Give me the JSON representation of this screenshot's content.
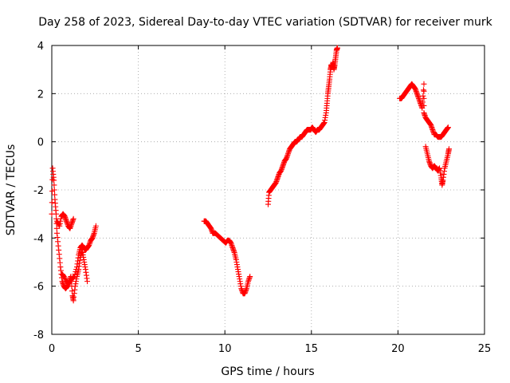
{
  "chart_data": {
    "type": "scatter",
    "title": "Day 258 of 2023, Sidereal Day-to-day VTEC variation (SDTVAR) for receiver murk",
    "xlabel": "GPS time / hours",
    "ylabel": "SDTVAR / TECUs",
    "xlim": [
      0,
      25
    ],
    "ylim": [
      -8,
      4
    ],
    "xticks": [
      0,
      5,
      10,
      15,
      20,
      25
    ],
    "yticks": [
      -8,
      -6,
      -4,
      -2,
      0,
      2,
      4
    ],
    "grid": true,
    "marker": "plus",
    "color": "#ff0000",
    "series": [
      {
        "name": "SDTVAR",
        "segments": [
          [
            [
              0.0,
              -3.0
            ],
            [
              0.05,
              -1.1
            ],
            [
              0.12,
              -1.6
            ],
            [
              0.18,
              -2.4
            ],
            [
              0.25,
              -3.0
            ],
            [
              0.3,
              -3.8
            ],
            [
              0.4,
              -4.5
            ],
            [
              0.5,
              -5.2
            ],
            [
              0.6,
              -5.8
            ],
            [
              0.7,
              -6.0
            ],
            [
              0.8,
              -6.1
            ],
            [
              0.9,
              -6.0
            ],
            [
              1.0,
              -5.8
            ],
            [
              1.1,
              -5.6
            ],
            [
              1.2,
              -6.4
            ],
            [
              1.25,
              -6.6
            ],
            [
              1.35,
              -6.0
            ],
            [
              1.45,
              -5.6
            ],
            [
              1.55,
              -5.3
            ],
            [
              1.65,
              -4.8
            ],
            [
              1.75,
              -4.5
            ],
            [
              1.85,
              -4.9
            ],
            [
              1.95,
              -5.3
            ],
            [
              2.05,
              -5.8
            ]
          ],
          [
            [
              0.3,
              -3.3
            ],
            [
              0.45,
              -3.5
            ],
            [
              0.55,
              -3.1
            ],
            [
              0.65,
              -3.0
            ],
            [
              0.75,
              -3.1
            ],
            [
              0.85,
              -3.3
            ],
            [
              0.95,
              -3.5
            ],
            [
              1.05,
              -3.6
            ],
            [
              1.15,
              -3.4
            ],
            [
              1.25,
              -3.2
            ]
          ],
          [
            [
              0.6,
              -5.5
            ],
            [
              0.7,
              -5.6
            ],
            [
              0.85,
              -5.8
            ],
            [
              1.0,
              -5.9
            ],
            [
              1.15,
              -5.7
            ],
            [
              1.3,
              -5.6
            ],
            [
              1.45,
              -5.2
            ],
            [
              1.55,
              -4.7
            ],
            [
              1.65,
              -4.4
            ],
            [
              1.75,
              -4.3
            ],
            [
              1.85,
              -4.4
            ],
            [
              1.95,
              -4.5
            ],
            [
              2.05,
              -4.4
            ],
            [
              2.15,
              -4.3
            ],
            [
              2.25,
              -4.1
            ],
            [
              2.35,
              -4.0
            ],
            [
              2.45,
              -3.8
            ],
            [
              2.55,
              -3.5
            ]
          ],
          [
            [
              8.8,
              -3.3
            ],
            [
              8.9,
              -3.3
            ],
            [
              9.0,
              -3.4
            ],
            [
              9.1,
              -3.5
            ],
            [
              9.2,
              -3.6
            ],
            [
              9.3,
              -3.8
            ],
            [
              9.45,
              -3.8
            ],
            [
              9.6,
              -3.9
            ],
            [
              9.75,
              -4.0
            ],
            [
              9.9,
              -4.1
            ],
            [
              10.05,
              -4.2
            ],
            [
              10.15,
              -4.1
            ],
            [
              10.25,
              -4.1
            ],
            [
              10.35,
              -4.2
            ],
            [
              10.45,
              -4.4
            ],
            [
              10.55,
              -4.6
            ],
            [
              10.65,
              -4.9
            ],
            [
              10.75,
              -5.3
            ],
            [
              10.85,
              -5.7
            ],
            [
              10.95,
              -6.1
            ],
            [
              11.05,
              -6.3
            ],
            [
              11.15,
              -6.3
            ],
            [
              11.25,
              -6.1
            ],
            [
              11.35,
              -5.8
            ],
            [
              11.45,
              -5.6
            ]
          ],
          [
            [
              12.5,
              -2.6
            ],
            [
              12.55,
              -2.1
            ],
            [
              12.65,
              -2.0
            ],
            [
              12.75,
              -1.9
            ],
            [
              12.85,
              -1.8
            ],
            [
              12.95,
              -1.7
            ],
            [
              13.05,
              -1.5
            ],
            [
              13.15,
              -1.3
            ],
            [
              13.25,
              -1.2
            ],
            [
              13.35,
              -1.0
            ],
            [
              13.45,
              -0.8
            ],
            [
              13.55,
              -0.7
            ],
            [
              13.65,
              -0.5
            ],
            [
              13.75,
              -0.3
            ],
            [
              13.85,
              -0.2
            ],
            [
              13.95,
              -0.1
            ],
            [
              14.05,
              0.0
            ],
            [
              14.15,
              0.0
            ],
            [
              14.25,
              0.1
            ],
            [
              14.35,
              0.2
            ],
            [
              14.45,
              0.2
            ],
            [
              14.55,
              0.3
            ],
            [
              14.65,
              0.4
            ],
            [
              14.75,
              0.5
            ],
            [
              14.85,
              0.5
            ],
            [
              14.95,
              0.5
            ],
            [
              15.05,
              0.6
            ],
            [
              15.15,
              0.5
            ],
            [
              15.25,
              0.4
            ],
            [
              15.35,
              0.5
            ],
            [
              15.45,
              0.5
            ],
            [
              15.55,
              0.6
            ],
            [
              15.65,
              0.7
            ],
            [
              15.75,
              0.8
            ],
            [
              15.85,
              1.2
            ],
            [
              15.9,
              1.6
            ],
            [
              15.95,
              2.0
            ],
            [
              16.0,
              2.3
            ],
            [
              16.05,
              2.6
            ],
            [
              16.1,
              3.0
            ],
            [
              16.15,
              3.2
            ],
            [
              16.2,
              3.1
            ],
            [
              16.25,
              3.3
            ],
            [
              16.3,
              3.0
            ],
            [
              16.35,
              3.2
            ],
            [
              16.4,
              3.5
            ],
            [
              16.45,
              3.8
            ],
            [
              16.5,
              3.9
            ]
          ],
          [
            [
              20.1,
              1.8
            ],
            [
              20.2,
              1.8
            ],
            [
              20.3,
              1.9
            ],
            [
              20.4,
              2.0
            ],
            [
              20.5,
              2.1
            ],
            [
              20.6,
              2.2
            ],
            [
              20.7,
              2.3
            ],
            [
              20.8,
              2.4
            ],
            [
              20.9,
              2.3
            ],
            [
              21.0,
              2.2
            ],
            [
              21.1,
              2.0
            ],
            [
              21.2,
              1.8
            ],
            [
              21.3,
              1.6
            ],
            [
              21.4,
              1.4
            ],
            [
              21.5,
              2.4
            ],
            [
              21.5,
              1.2
            ],
            [
              21.6,
              1.0
            ],
            [
              21.7,
              0.9
            ],
            [
              21.8,
              0.8
            ],
            [
              21.9,
              0.7
            ],
            [
              22.0,
              0.5
            ],
            [
              22.1,
              0.3
            ],
            [
              22.2,
              0.3
            ],
            [
              22.3,
              0.2
            ],
            [
              22.4,
              0.2
            ],
            [
              22.5,
              0.2
            ],
            [
              22.6,
              0.3
            ],
            [
              22.7,
              0.4
            ],
            [
              22.8,
              0.5
            ],
            [
              22.9,
              0.6
            ]
          ],
          [
            [
              21.6,
              -0.2
            ],
            [
              21.7,
              -0.5
            ],
            [
              21.8,
              -0.8
            ],
            [
              21.9,
              -1.0
            ],
            [
              22.0,
              -1.1
            ],
            [
              22.1,
              -1.0
            ],
            [
              22.2,
              -1.1
            ],
            [
              22.3,
              -1.2
            ],
            [
              22.4,
              -1.1
            ],
            [
              22.5,
              -1.5
            ],
            [
              22.55,
              -1.8
            ],
            [
              22.6,
              -1.6
            ],
            [
              22.7,
              -1.1
            ],
            [
              22.8,
              -0.8
            ],
            [
              22.9,
              -0.5
            ],
            [
              22.95,
              -0.3
            ]
          ]
        ]
      }
    ]
  }
}
